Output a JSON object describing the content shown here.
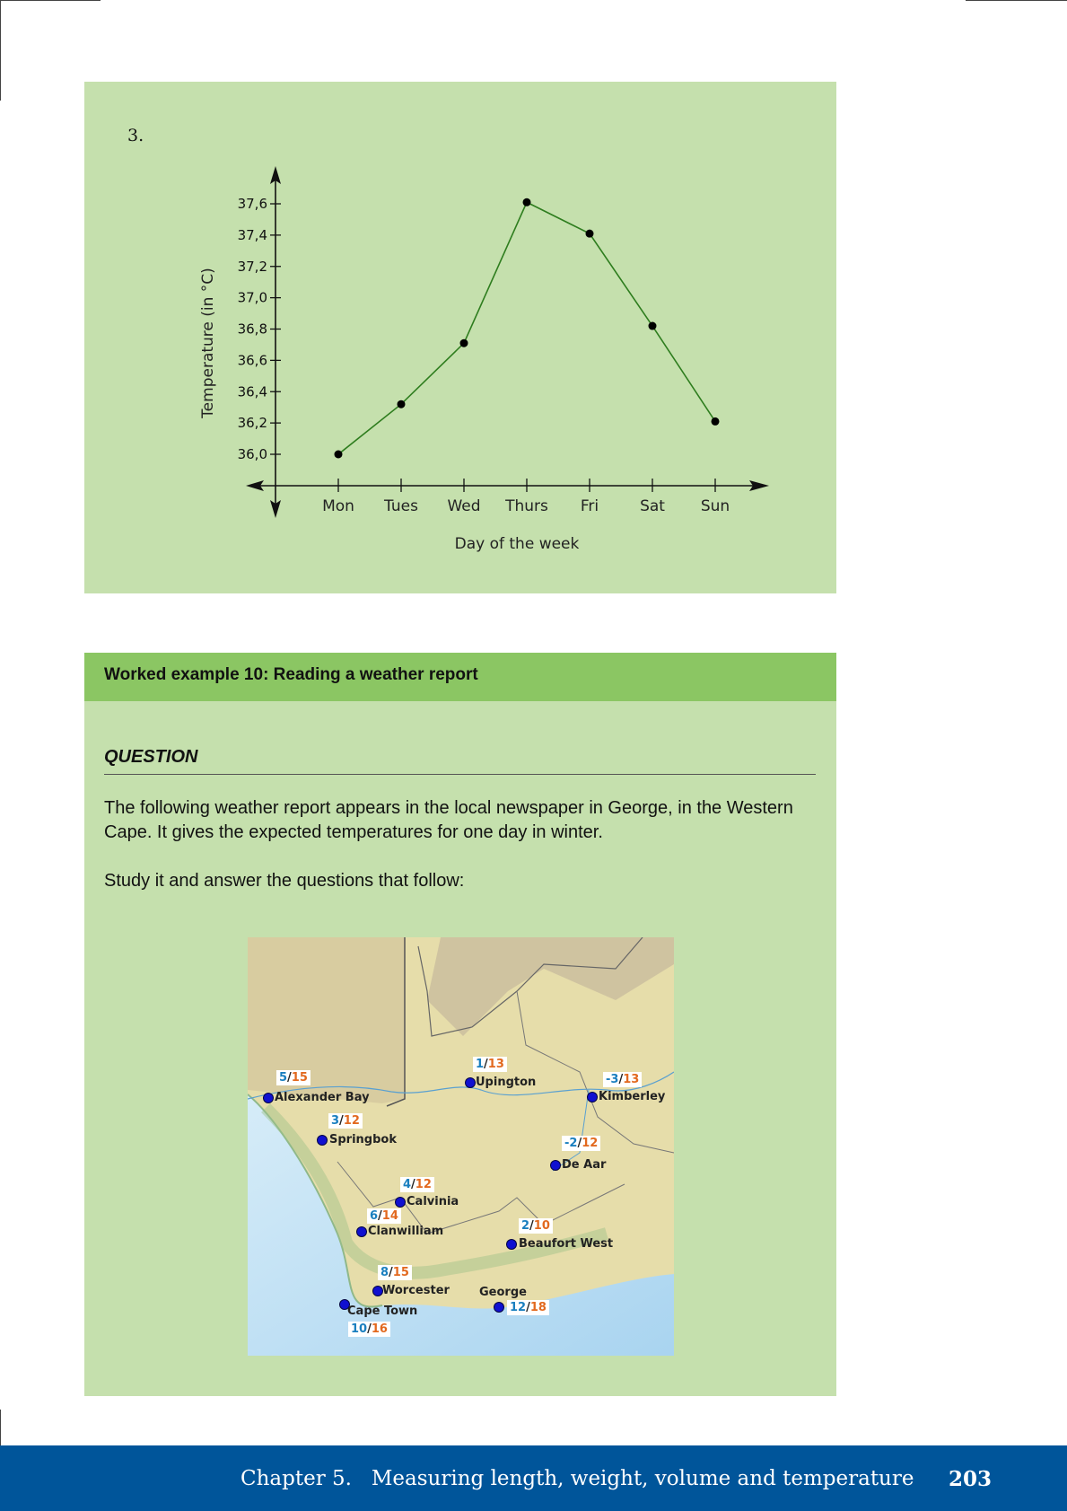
{
  "question_number": "3.",
  "chart_data": {
    "type": "line",
    "categories": [
      "Mon",
      "Tues",
      "Wed",
      "Thurs",
      "Fri",
      "Sat",
      "Sun"
    ],
    "values": [
      36.0,
      36.32,
      36.71,
      37.61,
      37.41,
      36.82,
      36.21
    ],
    "xlabel": "Day of the week",
    "ylabel": "Temperature (in °C)",
    "yticks": [
      "36,0",
      "36,2",
      "36,4",
      "36,6",
      "36,8",
      "37,0",
      "37,2",
      "37,4",
      "37,6"
    ],
    "ylim": [
      36.0,
      37.6
    ],
    "line_color": "#2e7d1e",
    "grid": false
  },
  "worked_example": {
    "title": "Worked example 10: Reading a weather report",
    "question_label": "QUESTION",
    "paragraph_1": "The following weather report appears in the local newspaper in George, in the Western Cape. It gives the expected temperatures for one day in winter.",
    "paragraph_2": "Study it and answer the questions that follow:"
  },
  "map": {
    "cities": [
      {
        "name": "Alexander Bay",
        "min": "5",
        "max": "15"
      },
      {
        "name": "Upington",
        "min": "1",
        "max": "13"
      },
      {
        "name": "Kimberley",
        "min": "-3",
        "max": "13"
      },
      {
        "name": "Springbok",
        "min": "3",
        "max": "12"
      },
      {
        "name": "De Aar",
        "min": "-2",
        "max": "12"
      },
      {
        "name": "Calvinia",
        "min": "4",
        "max": "12"
      },
      {
        "name": "Clanwilliam",
        "min": "6",
        "max": "14"
      },
      {
        "name": "Beaufort West",
        "min": "2",
        "max": "10"
      },
      {
        "name": "Worcester",
        "min": "8",
        "max": "15"
      },
      {
        "name": "George",
        "min": "12",
        "max": "18"
      },
      {
        "name": "Cape Town",
        "min": "10",
        "max": "16"
      }
    ],
    "separator": "/",
    "colors": {
      "min": "#1a7fbf",
      "max": "#e2691f",
      "dot": "#1010d0",
      "sea": "#bfe0f5",
      "land": "#e8dea8"
    }
  },
  "footer": {
    "chapter": "Chapter 5.   Measuring length, weight, volume and temperature",
    "page": "203"
  }
}
